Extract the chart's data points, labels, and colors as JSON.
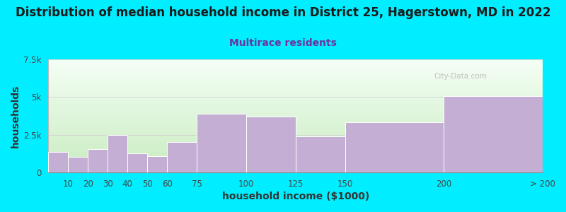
{
  "title": "Distribution of median household income in District 25, Hagerstown, MD in 2022",
  "subtitle": "Multirace residents",
  "xlabel": "household income ($1000)",
  "ylabel": "households",
  "bar_color": "#c4aed4",
  "bar_edge_color": "#ffffff",
  "background_color": "#00eeff",
  "plot_bg_top_color": "#f8fef0",
  "plot_bg_bottom_color": "#d8f0d0",
  "categories": [
    "10",
    "20",
    "30",
    "40",
    "50",
    "60",
    "75",
    "100",
    "125",
    "150",
    "200",
    "> 200"
  ],
  "edges": [
    0,
    10,
    20,
    30,
    40,
    50,
    60,
    75,
    100,
    125,
    150,
    200,
    250
  ],
  "values": [
    1350,
    1050,
    1550,
    2500,
    1250,
    1100,
    2000,
    3900,
    3700,
    2400,
    3350,
    5050
  ],
  "ylim": [
    0,
    7500
  ],
  "yticks": [
    0,
    2500,
    5000,
    7500
  ],
  "ytick_labels": [
    "0",
    "2.5k",
    "5k",
    "7.5k"
  ],
  "title_fontsize": 12,
  "subtitle_fontsize": 10,
  "axis_label_fontsize": 10,
  "tick_fontsize": 8.5,
  "title_color": "#1a1a1a",
  "subtitle_color": "#7030a0",
  "axis_label_color": "#333333",
  "tick_color": "#444444",
  "grid_color": "#d0d0d0",
  "watermark": "City-Data.com"
}
